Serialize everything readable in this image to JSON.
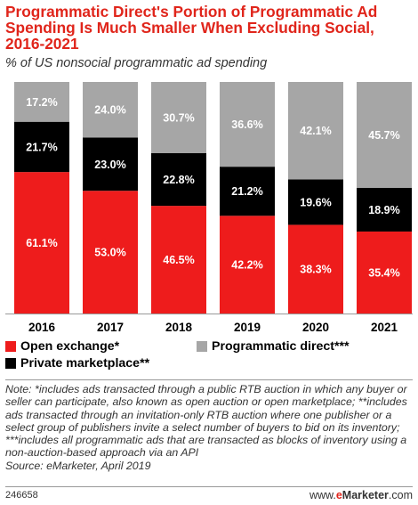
{
  "title": "Programmatic Direct's Portion of Programmatic Ad Spending Is Much Smaller When Excluding Social, 2016-2021",
  "subtitle": "% of US nonsocial programmatic ad spending",
  "chart_data": {
    "type": "bar",
    "stacked": true,
    "categories": [
      "2016",
      "2017",
      "2018",
      "2019",
      "2020",
      "2021"
    ],
    "series": [
      {
        "name": "Open exchange*",
        "color": "#ee1c1c",
        "label_color": "#ffffff",
        "values": [
          61.1,
          53.0,
          46.5,
          42.2,
          38.3,
          35.4
        ],
        "labels": [
          "61.1%",
          "53.0%",
          "46.5%",
          "42.2%",
          "38.3%",
          "35.4%"
        ]
      },
      {
        "name": "Private marketplace**",
        "color": "#000000",
        "label_color": "#ffffff",
        "values": [
          21.7,
          23.0,
          22.8,
          21.2,
          19.6,
          18.9
        ],
        "labels": [
          "21.7%",
          "23.0%",
          "22.8%",
          "21.2%",
          "19.6%",
          "18.9%"
        ]
      },
      {
        "name": "Programmatic direct***",
        "color": "#a6a6a6",
        "label_color": "#ffffff",
        "values": [
          17.2,
          24.0,
          30.7,
          36.6,
          42.1,
          45.7
        ],
        "labels": [
          "17.2%",
          "24.0%",
          "30.7%",
          "36.6%",
          "42.1%",
          "45.7%"
        ]
      }
    ],
    "ylim": [
      0,
      100
    ],
    "grid": false,
    "legend_position": "bottom"
  },
  "legend": {
    "open_exchange": "Open exchange*",
    "private_marketplace": "Private marketplace**",
    "programmatic_direct": "Programmatic direct***"
  },
  "colors": {
    "accent": "#e0251b",
    "open_exchange": "#ee1c1c",
    "private_marketplace": "#000000",
    "programmatic_direct": "#a6a6a6"
  },
  "note": "Note: *includes ads transacted through a public RTB auction in which any buyer or seller can participate, also known as open auction or open marketplace; **includes ads transacted through an invitation-only RTB auction where one publisher or a select group of publishers invite a select number of buyers to bid on its inventory; ***includes all programmatic ads that are transacted as blocks of inventory using a non-auction-based approach via an API",
  "source": "Source: eMarketer, April 2019",
  "footer": {
    "id": "246658",
    "brand_prefix": "www.",
    "brand_accent": "e",
    "brand_main": "Marketer",
    "brand_suffix": ".com"
  }
}
